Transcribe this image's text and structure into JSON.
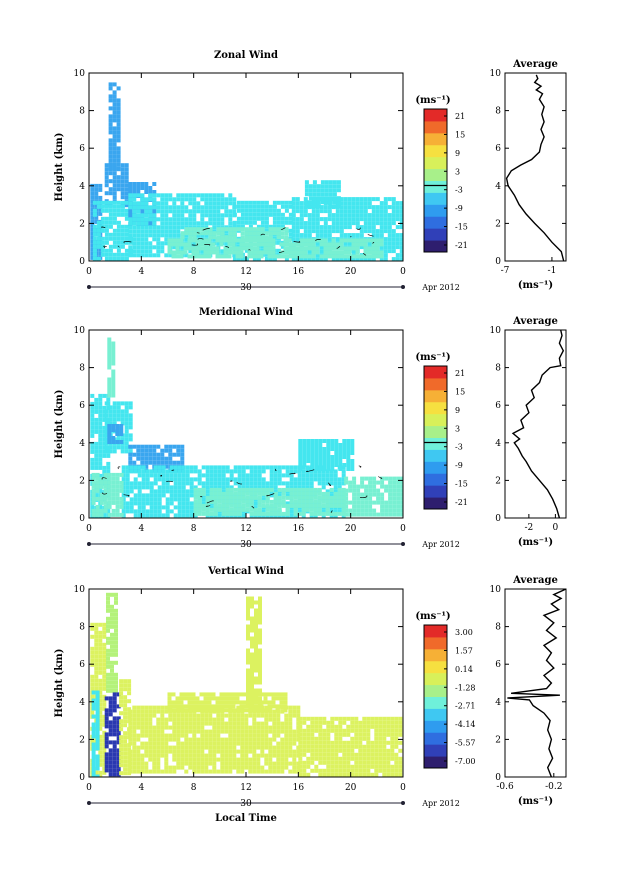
{
  "colors": {
    "colorbar": [
      "#2e1e6e",
      "#3040b8",
      "#2f6ee0",
      "#2f9cef",
      "#3fc8f2",
      "#6ff0da",
      "#a8f08a",
      "#d8f05a",
      "#f6e040",
      "#f6b036",
      "#f06a2a",
      "#e32a28"
    ],
    "wind_cyan": "#44e6ef",
    "wind_blue": "#3aa6ef",
    "wind_teal": "#78f0d2",
    "wind_yellow": "#dcf260",
    "wind_green": "#b4f27a",
    "wind_dark": "#2a38b0"
  },
  "chart_data": [
    {
      "type": "heatmap",
      "title": "Zonal Wind",
      "ylabel": "Height (km)",
      "xlim": [
        0,
        24
      ],
      "ylim": [
        0,
        10
      ],
      "x_ticks": [
        "0",
        "4",
        "8",
        "12",
        "16",
        "20",
        "0"
      ],
      "y_ticks": [
        "0",
        "2",
        "4",
        "6",
        "8",
        "10"
      ],
      "date_label": "30",
      "month_label": "Apr 2012",
      "colorbar": {
        "unit": "(ms⁻¹)",
        "ticks": [
          "21",
          "15",
          "9",
          "3",
          "-3",
          "-9",
          "-15",
          "-21"
        ]
      },
      "regions": [
        {
          "x0": 0.1,
          "x1": 1.0,
          "y0": 0.1,
          "y1": 4.1,
          "c": "wind_blue"
        },
        {
          "x0": 1.5,
          "x1": 2.2,
          "y0": 5.0,
          "y1": 9.5,
          "c": "wind_blue"
        },
        {
          "x0": 1.2,
          "x1": 3.0,
          "y0": 3.0,
          "y1": 5.2,
          "c": "wind_blue"
        },
        {
          "x0": 0.3,
          "x1": 3.2,
          "y0": 0.2,
          "y1": 3.2,
          "c": "wind_cyan"
        },
        {
          "x0": 3.0,
          "x1": 5.0,
          "y0": 2.0,
          "y1": 4.2,
          "c": "wind_blue"
        },
        {
          "x0": 3.0,
          "x1": 11.0,
          "y0": 0.3,
          "y1": 3.6,
          "c": "wind_cyan"
        },
        {
          "x0": 11.0,
          "x1": 15.5,
          "y0": 0.2,
          "y1": 3.2,
          "c": "wind_cyan"
        },
        {
          "x0": 15.5,
          "x1": 23.8,
          "y0": 0.2,
          "y1": 3.4,
          "c": "wind_cyan"
        },
        {
          "x0": 16.5,
          "x1": 19.0,
          "y0": 3.0,
          "y1": 4.3,
          "c": "wind_cyan"
        },
        {
          "x0": 6.0,
          "x1": 22.5,
          "y0": 0.3,
          "y1": 1.2,
          "c": "wind_teal"
        },
        {
          "x0": 7.0,
          "x1": 15.0,
          "y0": 1.2,
          "y1": 1.8,
          "c": "wind_teal"
        }
      ],
      "average": {
        "title": "Average",
        "unit": "(ms⁻¹)",
        "xlim": [
          -7,
          0.8
        ],
        "x_ticks": [
          "-7",
          "-1"
        ],
        "y_ticks": [
          "0",
          "2",
          "4",
          "6",
          "8",
          "10"
        ],
        "profile": [
          [
            0.5,
            0
          ],
          [
            0.2,
            0.5
          ],
          [
            -1.0,
            1
          ],
          [
            -2.0,
            1.5
          ],
          [
            -3.2,
            2
          ],
          [
            -4.3,
            2.5
          ],
          [
            -5.2,
            3
          ],
          [
            -5.8,
            3.5
          ],
          [
            -6.6,
            4
          ],
          [
            -6.8,
            4.4
          ],
          [
            -6.2,
            4.8
          ],
          [
            -5.0,
            5.1
          ],
          [
            -3.6,
            5.4
          ],
          [
            -2.6,
            5.8
          ],
          [
            -2.4,
            6.2
          ],
          [
            -2.0,
            6.6
          ],
          [
            -2.4,
            7.0
          ],
          [
            -2.0,
            7.4
          ],
          [
            -2.3,
            7.8
          ],
          [
            -2.0,
            8.2
          ],
          [
            -2.6,
            8.6
          ],
          [
            -2.2,
            8.9
          ],
          [
            -3.0,
            9.1
          ],
          [
            -2.4,
            9.3
          ],
          [
            -3.2,
            9.5
          ],
          [
            -2.8,
            9.7
          ],
          [
            -3.0,
            9.9
          ]
        ]
      }
    },
    {
      "type": "heatmap",
      "title": "Meridional Wind",
      "ylabel": "Height (km)",
      "xlim": [
        0,
        24
      ],
      "ylim": [
        0,
        10
      ],
      "x_ticks": [
        "0",
        "4",
        "8",
        "12",
        "16",
        "20",
        "0"
      ],
      "y_ticks": [
        "0",
        "2",
        "4",
        "6",
        "8",
        "10"
      ],
      "date_label": "30",
      "month_label": "Apr 2012",
      "colorbar": {
        "unit": "(ms⁻¹)",
        "ticks": [
          "21",
          "15",
          "9",
          "3",
          "-3",
          "-9",
          "-15",
          "-21"
        ]
      },
      "regions": [
        {
          "x0": 0.1,
          "x1": 1.6,
          "y0": 0.1,
          "y1": 6.6,
          "c": "wind_cyan"
        },
        {
          "x0": 1.4,
          "x1": 1.9,
          "y0": 6.5,
          "y1": 9.6,
          "c": "wind_teal"
        },
        {
          "x0": 1.2,
          "x1": 3.2,
          "y0": 3.5,
          "y1": 6.2,
          "c": "wind_cyan"
        },
        {
          "x0": 1.4,
          "x1": 2.6,
          "y0": 4.0,
          "y1": 5.0,
          "c": "wind_blue"
        },
        {
          "x0": 3.0,
          "x1": 7.0,
          "y0": 2.6,
          "y1": 3.9,
          "c": "wind_blue"
        },
        {
          "x0": 2.5,
          "x1": 19.5,
          "y0": 0.2,
          "y1": 2.8,
          "c": "wind_cyan"
        },
        {
          "x0": 16.0,
          "x1": 20.0,
          "y0": 2.7,
          "y1": 4.2,
          "c": "wind_cyan"
        },
        {
          "x0": 19.5,
          "x1": 23.8,
          "y0": 0.2,
          "y1": 2.2,
          "c": "wind_teal"
        },
        {
          "x0": 8.0,
          "x1": 19.5,
          "y0": 0.3,
          "y1": 1.6,
          "c": "wind_teal"
        },
        {
          "x0": 0.2,
          "x1": 2.4,
          "y0": 0.2,
          "y1": 2.4,
          "c": "wind_teal"
        }
      ],
      "average": {
        "title": "Average",
        "unit": "(ms⁻¹)",
        "xlim": [
          -3.8,
          0.8
        ],
        "x_ticks": [
          "-2",
          "0"
        ],
        "y_ticks": [
          "0",
          "2",
          "4",
          "6",
          "8",
          "10"
        ],
        "profile": [
          [
            0.3,
            0
          ],
          [
            0.1,
            0.5
          ],
          [
            -0.2,
            1
          ],
          [
            -0.6,
            1.5
          ],
          [
            -1.2,
            2
          ],
          [
            -1.8,
            2.5
          ],
          [
            -2.2,
            3
          ],
          [
            -2.5,
            3.3
          ],
          [
            -2.8,
            3.7
          ],
          [
            -3.1,
            4.0
          ],
          [
            -2.7,
            4.2
          ],
          [
            -3.2,
            4.5
          ],
          [
            -2.4,
            4.8
          ],
          [
            -2.6,
            5.2
          ],
          [
            -2.0,
            5.6
          ],
          [
            -2.2,
            6.0
          ],
          [
            -1.6,
            6.4
          ],
          [
            -1.8,
            6.8
          ],
          [
            -1.2,
            7.2
          ],
          [
            -1.0,
            7.6
          ],
          [
            -0.4,
            8.0
          ],
          [
            0.4,
            8.1
          ],
          [
            0.3,
            8.5
          ],
          [
            0.6,
            8.9
          ],
          [
            0.3,
            9.3
          ],
          [
            0.5,
            9.7
          ],
          [
            0.4,
            10
          ]
        ]
      }
    },
    {
      "type": "heatmap",
      "title": "Vertical Wind",
      "ylabel": "Height (km)",
      "xlabel": "Local Time",
      "xlim": [
        0,
        24
      ],
      "ylim": [
        0,
        10
      ],
      "x_ticks": [
        "0",
        "4",
        "8",
        "12",
        "16",
        "20",
        "0"
      ],
      "y_ticks": [
        "0",
        "2",
        "4",
        "6",
        "8",
        "10"
      ],
      "date_label": "30",
      "month_label": "Apr 2012",
      "colorbar": {
        "unit": "(ms⁻¹)",
        "ticks": [
          "3.00",
          "1.57",
          "0.14",
          "-1.28",
          "-2.71",
          "-4.14",
          "-5.57",
          "-7.00"
        ]
      },
      "regions": [
        {
          "x0": 0.1,
          "x1": 1.3,
          "y0": 0.1,
          "y1": 8.2,
          "c": "wind_yellow"
        },
        {
          "x0": 1.3,
          "x1": 2.2,
          "y0": 4.5,
          "y1": 9.8,
          "c": "wind_green"
        },
        {
          "x0": 0.2,
          "x1": 0.8,
          "y0": 0.1,
          "y1": 4.6,
          "c": "wind_cyan"
        },
        {
          "x0": 1.2,
          "x1": 2.2,
          "y0": 0.1,
          "y1": 4.5,
          "c": "wind_dark"
        },
        {
          "x0": 2.3,
          "x1": 3.2,
          "y0": 0.2,
          "y1": 5.2,
          "c": "wind_yellow"
        },
        {
          "x0": 3.0,
          "x1": 16.0,
          "y0": 0.3,
          "y1": 3.8,
          "c": "wind_yellow"
        },
        {
          "x0": 16.0,
          "x1": 23.8,
          "y0": 0.2,
          "y1": 3.2,
          "c": "wind_yellow"
        },
        {
          "x0": 6.0,
          "x1": 15.0,
          "y0": 3.6,
          "y1": 4.5,
          "c": "wind_yellow"
        },
        {
          "x0": 12.0,
          "x1": 13.0,
          "y0": 4.0,
          "y1": 9.6,
          "c": "wind_yellow"
        }
      ],
      "average": {
        "title": "Average",
        "unit": "(ms⁻¹)",
        "xlim": [
          -0.6,
          -0.1
        ],
        "x_ticks": [
          "-0.6",
          "-0.2"
        ],
        "y_ticks": [
          "0",
          "2",
          "4",
          "6",
          "8",
          "10"
        ],
        "profile": [
          [
            -0.22,
            0
          ],
          [
            -0.25,
            0.5
          ],
          [
            -0.21,
            1
          ],
          [
            -0.24,
            1.5
          ],
          [
            -0.22,
            2
          ],
          [
            -0.25,
            2.5
          ],
          [
            -0.23,
            3
          ],
          [
            -0.28,
            3.4
          ],
          [
            -0.37,
            3.8
          ],
          [
            -0.4,
            4.1
          ],
          [
            -0.58,
            4.2
          ],
          [
            -0.15,
            4.35
          ],
          [
            -0.55,
            4.45
          ],
          [
            -0.26,
            4.7
          ],
          [
            -0.22,
            5.0
          ],
          [
            -0.28,
            5.4
          ],
          [
            -0.2,
            5.8
          ],
          [
            -0.26,
            6.2
          ],
          [
            -0.22,
            6.6
          ],
          [
            -0.28,
            7.0
          ],
          [
            -0.18,
            7.4
          ],
          [
            -0.26,
            7.8
          ],
          [
            -0.2,
            8.2
          ],
          [
            -0.28,
            8.6
          ],
          [
            -0.16,
            8.9
          ],
          [
            -0.22,
            9.2
          ],
          [
            -0.14,
            9.5
          ],
          [
            -0.2,
            9.7
          ],
          [
            -0.1,
            10
          ]
        ]
      }
    }
  ]
}
